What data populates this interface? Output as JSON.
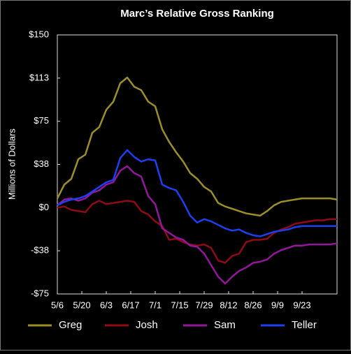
{
  "chart_data": {
    "type": "line",
    "title": "Marc’s Relative Gross Ranking",
    "y_label": "Millions of Dollars",
    "x": [
      0,
      4,
      8,
      12,
      16,
      20,
      24,
      28,
      32,
      36,
      40,
      44,
      48,
      52,
      56,
      60,
      64,
      68,
      72,
      76,
      80,
      84,
      88,
      92,
      96,
      100,
      104,
      108,
      112,
      116,
      120,
      124,
      128,
      132,
      136,
      140,
      144,
      148,
      152,
      156,
      160
    ],
    "xlim": [
      0,
      160
    ],
    "xticks": [
      {
        "value": 0,
        "label": "5/6"
      },
      {
        "value": 14,
        "label": "5/20"
      },
      {
        "value": 28,
        "label": "6/3"
      },
      {
        "value": 42,
        "label": "6/17"
      },
      {
        "value": 56,
        "label": "7/1"
      },
      {
        "value": 70,
        "label": "7/15"
      },
      {
        "value": 84,
        "label": "7/29"
      },
      {
        "value": 98,
        "label": "8/12"
      },
      {
        "value": 112,
        "label": "8/26"
      },
      {
        "value": 126,
        "label": "9/9"
      },
      {
        "value": 140,
        "label": "9/23"
      }
    ],
    "ylim": [
      -75,
      150
    ],
    "yticks": [
      {
        "value": -75,
        "label": "-$75"
      },
      {
        "value": -37.5,
        "label": "-$38"
      },
      {
        "value": 0,
        "label": "$0"
      },
      {
        "value": 37.5,
        "label": "$38"
      },
      {
        "value": 75,
        "label": "$75"
      },
      {
        "value": 112.5,
        "label": "$113"
      },
      {
        "value": 150,
        "label": "$150"
      }
    ],
    "legend": "bottom",
    "series": [
      {
        "name": "Greg",
        "color": "#9c8f2a",
        "values": [
          8,
          20,
          25,
          42,
          46,
          65,
          70,
          85,
          92,
          108,
          113,
          105,
          102,
          92,
          88,
          68,
          57,
          48,
          40,
          30,
          25,
          18,
          14,
          4,
          1,
          -1,
          -3,
          -5,
          -6,
          -7,
          -3,
          2,
          5,
          6,
          7,
          8,
          8,
          8,
          8,
          8,
          7
        ]
      },
      {
        "name": "Josh",
        "color": "#8f0b16",
        "values": [
          0,
          1,
          -2,
          -3,
          -4,
          3,
          6,
          3,
          4,
          5,
          6,
          5,
          -3,
          -6,
          -12,
          -16,
          -28,
          -27,
          -30,
          -32,
          -33,
          -32,
          -35,
          -46,
          -48,
          -42,
          -40,
          -30,
          -28,
          -28,
          -27,
          -22,
          -19,
          -17,
          -14,
          -13,
          -12,
          -11,
          -11,
          -10,
          -10
        ]
      },
      {
        "name": "Sam",
        "color": "#92179a",
        "values": [
          2,
          7,
          8,
          6,
          8,
          13,
          15,
          20,
          22,
          32,
          36,
          30,
          27,
          10,
          3,
          -18,
          -22,
          -26,
          -28,
          -33,
          -34,
          -40,
          -50,
          -60,
          -66,
          -60,
          -55,
          -52,
          -48,
          -47,
          -45,
          -40,
          -37,
          -35,
          -33,
          -33,
          -32,
          -32,
          -32,
          -32,
          -31
        ]
      },
      {
        "name": "Teller",
        "color": "#1c40f0",
        "values": [
          2,
          5,
          7,
          8,
          10,
          14,
          18,
          22,
          24,
          43,
          50,
          44,
          40,
          42,
          41,
          20,
          17,
          15,
          5,
          -7,
          -13,
          -10,
          -12,
          -15,
          -18,
          -20,
          -19,
          -22,
          -24,
          -25,
          -23,
          -21,
          -20,
          -19,
          -17,
          -16,
          -16,
          -16,
          -16,
          -16,
          -16
        ]
      }
    ]
  }
}
